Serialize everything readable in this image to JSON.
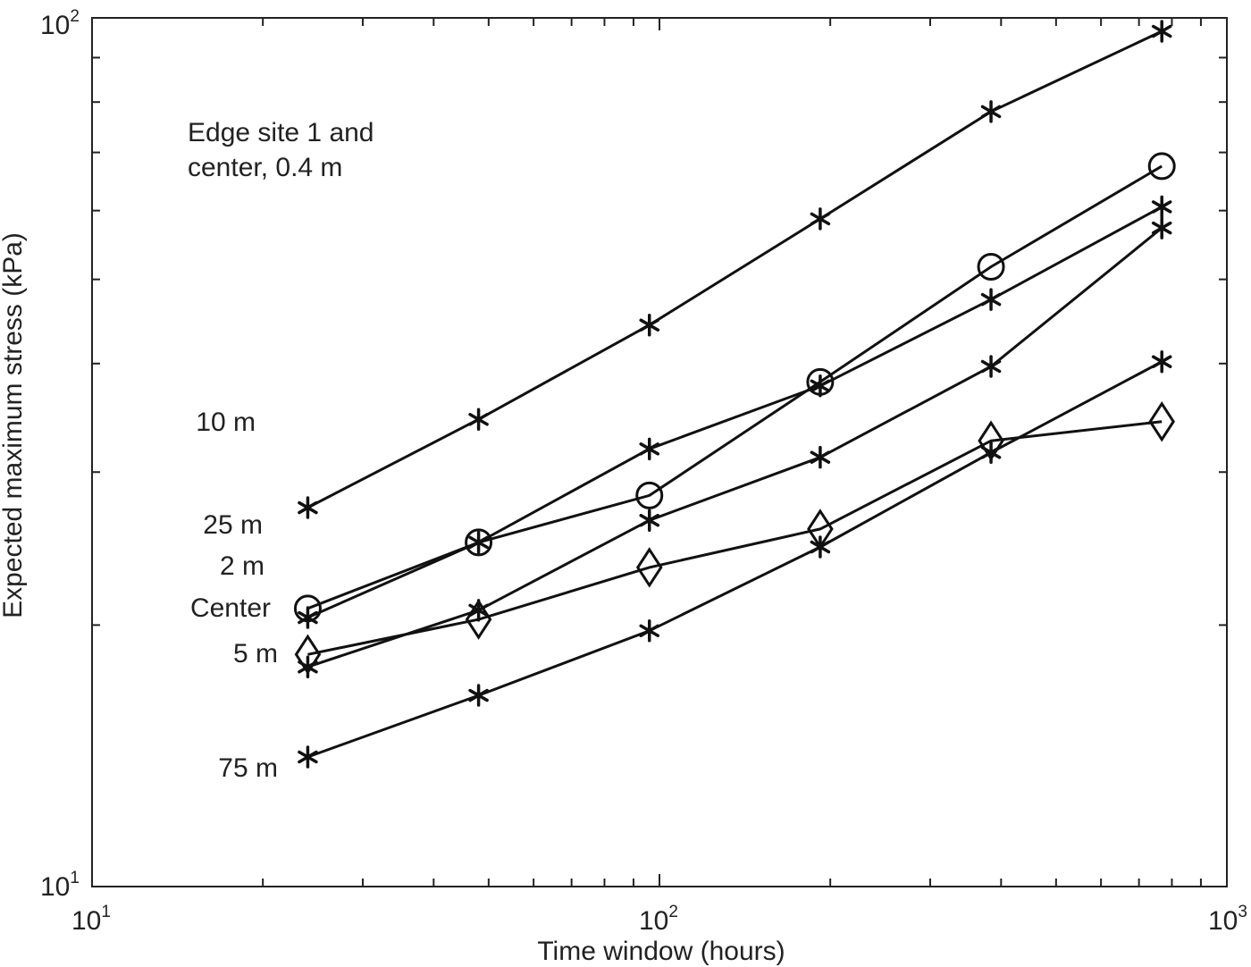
{
  "chart_data": {
    "type": "line",
    "xscale": "log",
    "yscale": "log",
    "xlim": [
      10,
      1000
    ],
    "ylim": [
      10,
      100
    ],
    "xlabel": "Time window (hours)",
    "ylabel": "Expected maximum stress (kPa)",
    "x_ticks": [
      {
        "base": "10",
        "exp": "1"
      },
      {
        "base": "10",
        "exp": "2"
      },
      {
        "base": "10",
        "exp": "3"
      }
    ],
    "y_ticks": [
      {
        "base": "10",
        "exp": "1"
      },
      {
        "base": "10",
        "exp": "2"
      }
    ],
    "grid": false,
    "annotation": [
      "Edge site 1 and",
      "center, 0.4 m"
    ],
    "x": [
      24,
      48,
      96,
      192,
      384,
      768
    ],
    "series": [
      {
        "name": "10 m",
        "marker": "asterisk",
        "values": [
          27.3,
          34.5,
          44.3,
          58.7,
          78.0,
          96.5
        ]
      },
      {
        "name": "25 m",
        "marker": "circle",
        "values": [
          20.9,
          24.9,
          28.2,
          38.1,
          51.7,
          67.5
        ]
      },
      {
        "name": "2 m",
        "marker": "asterisk",
        "values": [
          20.4,
          24.9,
          31.9,
          37.7,
          47.4,
          60.6
        ]
      },
      {
        "name": "Center",
        "marker": "diamond",
        "values": [
          18.5,
          20.3,
          23.3,
          25.8,
          32.6,
          34.3
        ]
      },
      {
        "name": "5 m",
        "marker": "asterisk",
        "values": [
          17.9,
          20.8,
          26.4,
          31.2,
          39.7,
          57.3
        ]
      },
      {
        "name": "75 m",
        "marker": "asterisk",
        "values": [
          14.1,
          16.6,
          19.7,
          24.6,
          31.6,
          40.2
        ]
      }
    ]
  }
}
